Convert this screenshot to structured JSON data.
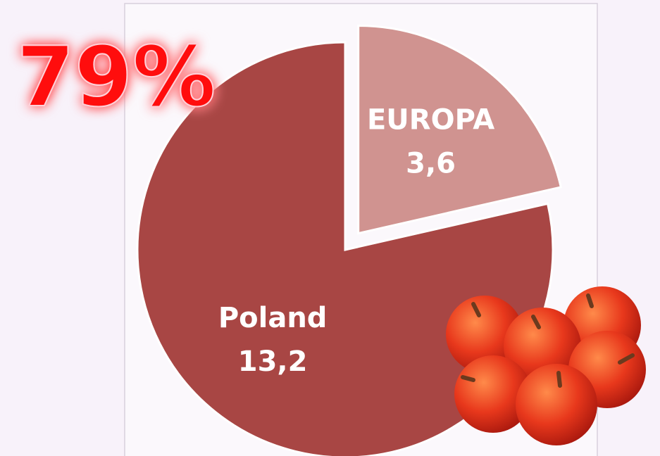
{
  "chart_data": {
    "type": "pie",
    "annotation": "79%",
    "categories": [
      "EUROPA",
      "Poland"
    ],
    "values": [
      3.6,
      13.2
    ],
    "value_labels": [
      "3,6",
      "13,2"
    ],
    "colors": [
      "#d09390",
      "#a84644"
    ]
  }
}
